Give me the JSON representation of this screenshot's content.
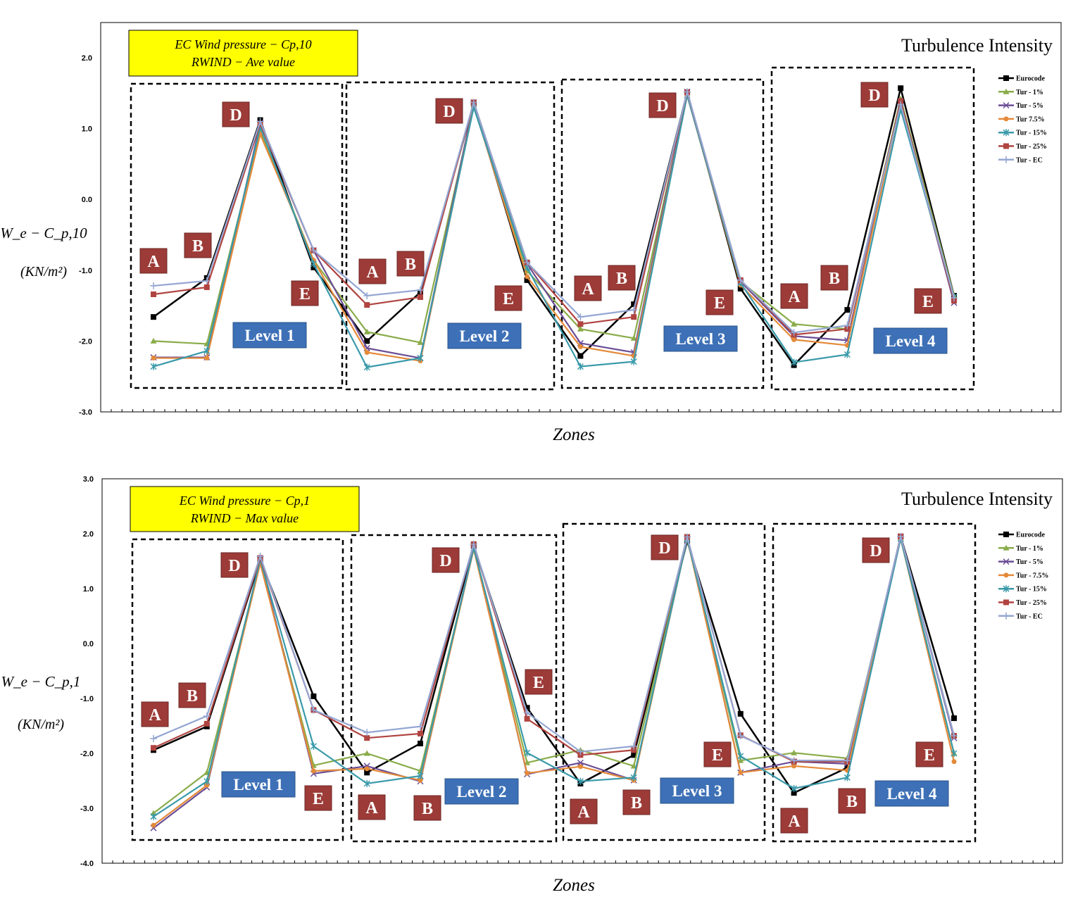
{
  "chart_data": [
    {
      "type": "line",
      "title": "Turbulence Intensity",
      "info_box": [
        "EC Wind pressure  − Cp,10",
        "RWIND  − Ave value"
      ],
      "xlabel": "Zones",
      "ylabel": "W_e − C_p,10",
      "yunit": "(KN/m²)",
      "ylim": [
        -3,
        2.5
      ],
      "yticks": [
        "2.0",
        "1.0",
        "0.0",
        "-1.0",
        "-2.0",
        "-3.0"
      ],
      "ytick_values": [
        2,
        1,
        0,
        -1,
        -2,
        -3
      ],
      "legend_position": "right",
      "zone_letters": [
        "A",
        "B",
        "D",
        "E",
        "A",
        "B",
        "D",
        "E",
        "A",
        "B",
        "D",
        "E",
        "A",
        "B",
        "D",
        "E"
      ],
      "levels": [
        "Level 1",
        "Level 2",
        "Level 3",
        "Level 4"
      ],
      "series": [
        {
          "name": "Eurocode",
          "color": "#000000",
          "marker": "square",
          "values": [
            -1.66,
            -1.11,
            1.12,
            -0.96,
            -2.0,
            -1.31,
            1.35,
            -1.14,
            -2.21,
            -1.48,
            1.51,
            -1.26,
            -2.34,
            -1.56,
            1.57,
            -1.36
          ]
        },
        {
          "name": "Tur - 1%",
          "color": "#8aac4a",
          "marker": "triangle",
          "values": [
            -2.0,
            -2.04,
            0.97,
            -0.86,
            -1.87,
            -2.02,
            1.32,
            -1.01,
            -1.83,
            -1.96,
            1.47,
            -1.16,
            -1.76,
            -1.83,
            1.42,
            -1.36
          ]
        },
        {
          "name": "Tur - 5%",
          "color": "#6b4d95",
          "marker": "x",
          "values": [
            -2.23,
            -2.23,
            1.07,
            -0.72,
            -2.1,
            -2.24,
            1.37,
            -0.91,
            -2.03,
            -2.16,
            1.52,
            -1.16,
            -1.93,
            -1.99,
            1.37,
            -1.46
          ]
        },
        {
          "name": "Tur 7.5%",
          "color": "#e48a3a",
          "marker": "circle",
          "values": [
            -2.24,
            -2.24,
            0.92,
            -0.86,
            -2.16,
            -2.28,
            1.32,
            -1.09,
            -2.08,
            -2.21,
            1.47,
            -1.21,
            -1.98,
            -2.06,
            1.37,
            -1.41
          ]
        },
        {
          "name": "Tur - 15%",
          "color": "#3a9aaa",
          "marker": "star",
          "values": [
            -2.36,
            -2.14,
            1.02,
            -0.91,
            -2.37,
            -2.24,
            1.3,
            -0.96,
            -2.36,
            -2.29,
            1.47,
            -1.18,
            -2.3,
            -2.19,
            1.27,
            -1.38
          ]
        },
        {
          "name": "Tur - 25%",
          "color": "#b04440",
          "marker": "square",
          "values": [
            -1.34,
            -1.24,
            1.07,
            -0.72,
            -1.49,
            -1.38,
            1.37,
            -0.89,
            -1.76,
            -1.66,
            1.51,
            -1.14,
            -1.91,
            -1.83,
            1.39,
            -1.43
          ]
        },
        {
          "name": "Tur - EC",
          "color": "#94a6d2",
          "marker": "plus",
          "values": [
            -1.22,
            -1.15,
            1.1,
            -0.72,
            -1.36,
            -1.28,
            1.37,
            -0.89,
            -1.66,
            -1.56,
            1.52,
            -1.14,
            -1.88,
            -1.78,
            1.34,
            -1.39
          ]
        }
      ]
    },
    {
      "type": "line",
      "title": "Turbulence Intensity",
      "info_box": [
        "EC Wind pressure  − Cp,1",
        "RWIND  − Max value"
      ],
      "xlabel": "Zones",
      "ylabel": "W_e − C_p,1",
      "yunit": "(KN/m²)",
      "ylim": [
        -4,
        3
      ],
      "yticks": [
        "3.0",
        "2.0",
        "1.0",
        "0.0",
        "-1.0",
        "-2.0",
        "-3.0",
        "-4.0"
      ],
      "ytick_values": [
        3,
        2,
        1,
        0,
        -1,
        -2,
        -3,
        -4
      ],
      "legend_position": "right",
      "zone_letters": [
        "A",
        "B",
        "D",
        "E",
        "A",
        "B",
        "D",
        "E",
        "A",
        "B",
        "D",
        "E",
        "A",
        "B",
        "D",
        "E"
      ],
      "levels": [
        "Level 1",
        "Level 2",
        "Level 3",
        "Level 4"
      ],
      "series": [
        {
          "name": "Eurocode",
          "color": "#000000",
          "marker": "square",
          "values": [
            -1.94,
            -1.51,
            1.53,
            -0.96,
            -2.35,
            -1.82,
            1.78,
            -1.17,
            -2.55,
            -2.03,
            1.87,
            -1.28,
            -2.72,
            -2.26,
            1.95,
            -1.36
          ]
        },
        {
          "name": "Tur - 1%",
          "color": "#8aac4a",
          "marker": "triangle",
          "values": [
            -3.09,
            -2.35,
            1.46,
            -2.22,
            -2.0,
            -2.32,
            1.72,
            -2.17,
            -1.94,
            -2.23,
            1.91,
            -2.13,
            -1.99,
            -2.09,
            1.91,
            -2.0
          ]
        },
        {
          "name": "Tur - 5%",
          "color": "#6b4d95",
          "marker": "x",
          "values": [
            -3.36,
            -2.62,
            1.53,
            -2.37,
            -2.23,
            -2.51,
            1.78,
            -2.38,
            -2.17,
            -2.49,
            1.94,
            -2.35,
            -2.15,
            -2.19,
            1.95,
            -1.72
          ]
        },
        {
          "name": "Tur - 7.5%",
          "color": "#e48a3a",
          "marker": "circle",
          "values": [
            -3.31,
            -2.58,
            1.46,
            -2.32,
            -2.28,
            -2.49,
            1.72,
            -2.36,
            -2.24,
            -2.49,
            1.91,
            -2.35,
            -2.23,
            -2.31,
            1.91,
            -2.15
          ]
        },
        {
          "name": "Tur - 15%",
          "color": "#3a9aaa",
          "marker": "star",
          "values": [
            -3.15,
            -2.51,
            1.53,
            -1.87,
            -2.55,
            -2.41,
            1.74,
            -1.99,
            -2.51,
            -2.44,
            1.91,
            -2.05,
            -2.64,
            -2.44,
            1.91,
            -2.0
          ]
        },
        {
          "name": "Tur - 25%",
          "color": "#b04440",
          "marker": "square",
          "values": [
            -1.9,
            -1.46,
            1.56,
            -1.21,
            -1.72,
            -1.64,
            1.81,
            -1.37,
            -2.03,
            -1.94,
            1.94,
            -1.67,
            -2.15,
            -2.15,
            1.95,
            -1.68
          ]
        },
        {
          "name": "Tur - EC",
          "color": "#94a6d2",
          "marker": "plus",
          "values": [
            -1.73,
            -1.32,
            1.59,
            -1.21,
            -1.62,
            -1.51,
            1.81,
            -1.26,
            -1.97,
            -1.87,
            1.94,
            -1.68,
            -2.13,
            -2.13,
            1.95,
            -1.68
          ]
        }
      ]
    }
  ]
}
